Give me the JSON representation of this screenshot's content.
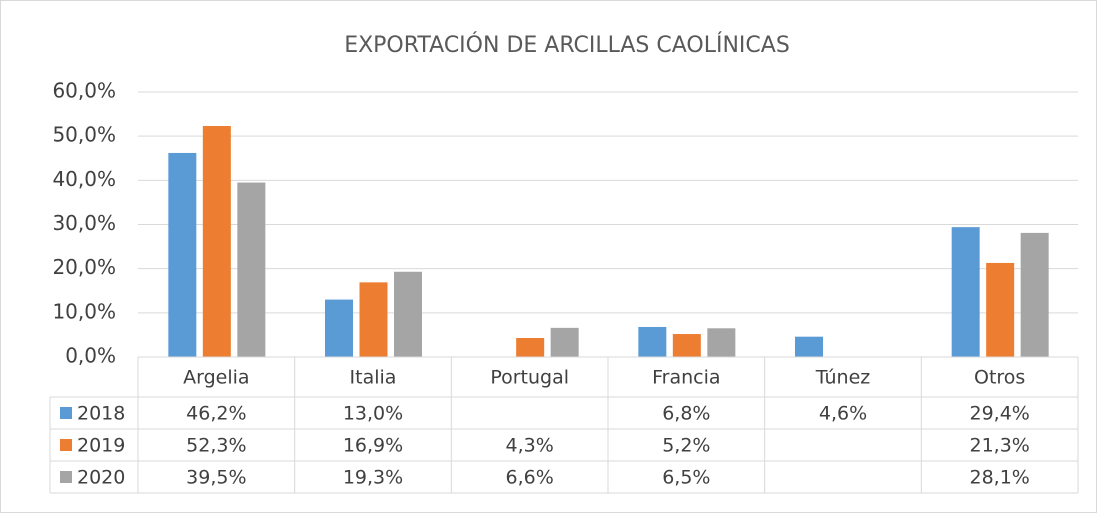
{
  "chart_data": {
    "type": "bar",
    "title": "EXPORTACIÓN DE ARCILLAS CAOLÍNICAS",
    "categories": [
      "Argelia",
      "Italia",
      "Portugal",
      "Francia",
      "Túnez",
      "Otros"
    ],
    "series": [
      {
        "name": "2018",
        "color": "#5b9bd5",
        "values": [
          46.2,
          13.0,
          null,
          6.8,
          4.6,
          29.4
        ],
        "value_labels": [
          "46,2%",
          "13,0%",
          null,
          "6,8%",
          "4,6%",
          "29,4%"
        ]
      },
      {
        "name": "2019",
        "color": "#ed7d31",
        "values": [
          52.3,
          16.9,
          4.3,
          5.2,
          null,
          21.3
        ],
        "value_labels": [
          "52,3%",
          "16,9%",
          "4,3%",
          "5,2%",
          null,
          "21,3%"
        ]
      },
      {
        "name": "2020",
        "color": "#a5a5a5",
        "values": [
          39.5,
          19.3,
          6.6,
          6.5,
          null,
          28.1
        ],
        "value_labels": [
          "39,5%",
          "19,3%",
          "6,6%",
          "6,5%",
          null,
          "28,1%"
        ]
      }
    ],
    "ylim": [
      0,
      60
    ],
    "yticks": [
      {
        "value": 0,
        "label": "0,0%"
      },
      {
        "value": 10,
        "label": "10,0%"
      },
      {
        "value": 20,
        "label": "20,0%"
      },
      {
        "value": 30,
        "label": "30,0%"
      },
      {
        "value": 40,
        "label": "40,0%"
      },
      {
        "value": 50,
        "label": "50,0%"
      },
      {
        "value": 60,
        "label": "60,0%"
      }
    ],
    "grid": true
  }
}
